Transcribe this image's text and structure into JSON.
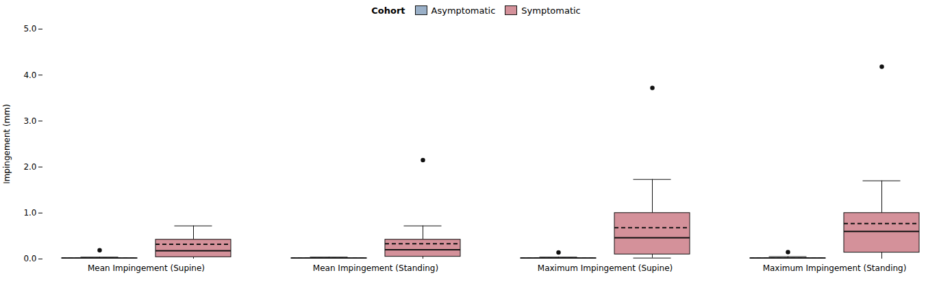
{
  "chart_data": {
    "type": "box",
    "ylabel": "Impingement (mm)",
    "ylim": [
      0,
      5
    ],
    "yticks": [
      0,
      1,
      2,
      3,
      4,
      5
    ],
    "categories": [
      "Mean Impingement (Supine)",
      "Mean Impingement (Standing)",
      "Maximum Impingement (Supine)",
      "Maximum Impingement (Standing)"
    ],
    "legend": "top",
    "legend_title": "Cohort",
    "series": [
      {
        "name": "Asymptomatic",
        "color": "#9ab0c8",
        "boxes": [
          {
            "q1": 0.0,
            "median": 0.01,
            "q3": 0.02,
            "mean": 0.015,
            "whisker_low": 0.0,
            "whisker_high": 0.04,
            "outliers": [
              0.19
            ]
          },
          {
            "q1": 0.0,
            "median": 0.01,
            "q3": 0.02,
            "mean": 0.015,
            "whisker_low": 0.0,
            "whisker_high": 0.04,
            "outliers": []
          },
          {
            "q1": 0.0,
            "median": 0.01,
            "q3": 0.02,
            "mean": 0.015,
            "whisker_low": 0.0,
            "whisker_high": 0.04,
            "outliers": [
              0.14
            ]
          },
          {
            "q1": 0.0,
            "median": 0.01,
            "q3": 0.02,
            "mean": 0.015,
            "whisker_low": 0.0,
            "whisker_high": 0.05,
            "outliers": [
              0.15
            ]
          }
        ]
      },
      {
        "name": "Symptomatic",
        "color": "#d4919a",
        "boxes": [
          {
            "q1": 0.04,
            "median": 0.18,
            "q3": 0.42,
            "mean": 0.32,
            "whisker_low": 0.0,
            "whisker_high": 0.72,
            "outliers": []
          },
          {
            "q1": 0.05,
            "median": 0.2,
            "q3": 0.42,
            "mean": 0.33,
            "whisker_low": 0.0,
            "whisker_high": 0.72,
            "outliers": [
              2.15
            ]
          },
          {
            "q1": 0.1,
            "median": 0.46,
            "q3": 1.0,
            "mean": 0.68,
            "whisker_low": 0.02,
            "whisker_high": 1.73,
            "outliers": [
              3.72
            ]
          },
          {
            "q1": 0.14,
            "median": 0.6,
            "q3": 1.0,
            "mean": 0.77,
            "whisker_low": 0.0,
            "whisker_high": 1.7,
            "outliers": [
              4.18
            ]
          }
        ]
      }
    ]
  }
}
